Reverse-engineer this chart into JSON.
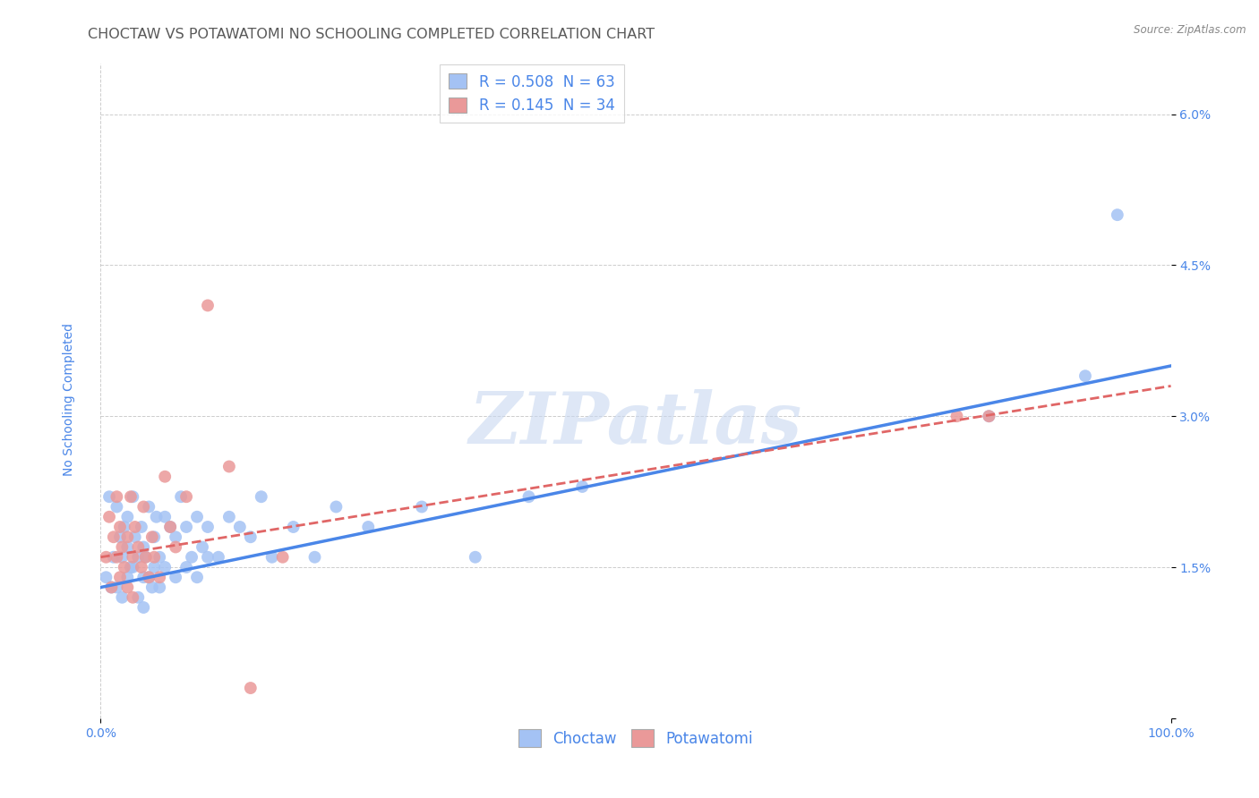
{
  "title": "CHOCTAW VS POTAWATOMI NO SCHOOLING COMPLETED CORRELATION CHART",
  "source": "Source: ZipAtlas.com",
  "ylabel": "No Schooling Completed",
  "watermark": "ZIPatlas",
  "choctaw_R": 0.508,
  "choctaw_N": 63,
  "potawatomi_R": 0.145,
  "potawatomi_N": 34,
  "xlim": [
    0,
    1.0
  ],
  "ylim": [
    0,
    0.065
  ],
  "xticks": [
    0,
    1.0
  ],
  "xticklabels": [
    "0.0%",
    "100.0%"
  ],
  "yticks": [
    0.0,
    0.015,
    0.03,
    0.045,
    0.06
  ],
  "yticklabels": [
    "",
    "1.5%",
    "3.0%",
    "4.5%",
    "6.0%"
  ],
  "choctaw_color": "#a4c2f4",
  "potawatomi_color": "#ea9999",
  "choctaw_line_color": "#4a86e8",
  "potawatomi_line_color": "#e06666",
  "background_color": "#ffffff",
  "grid_color": "#b7b7b7",
  "title_color": "#595959",
  "axis_label_color": "#4a86e8",
  "legend_text_color": "#4a86e8",
  "choctaw_x": [
    0.005,
    0.008,
    0.01,
    0.012,
    0.015,
    0.015,
    0.018,
    0.02,
    0.02,
    0.022,
    0.025,
    0.025,
    0.025,
    0.028,
    0.03,
    0.03,
    0.032,
    0.035,
    0.035,
    0.038,
    0.04,
    0.04,
    0.04,
    0.042,
    0.045,
    0.045,
    0.048,
    0.05,
    0.05,
    0.052,
    0.055,
    0.055,
    0.06,
    0.06,
    0.065,
    0.07,
    0.07,
    0.075,
    0.08,
    0.08,
    0.085,
    0.09,
    0.09,
    0.095,
    0.1,
    0.1,
    0.11,
    0.12,
    0.13,
    0.14,
    0.15,
    0.16,
    0.18,
    0.2,
    0.22,
    0.25,
    0.3,
    0.35,
    0.4,
    0.45,
    0.83,
    0.92,
    0.95
  ],
  "choctaw_y": [
    0.014,
    0.022,
    0.013,
    0.016,
    0.021,
    0.013,
    0.018,
    0.016,
    0.012,
    0.019,
    0.02,
    0.017,
    0.014,
    0.015,
    0.022,
    0.015,
    0.018,
    0.016,
    0.012,
    0.019,
    0.017,
    0.014,
    0.011,
    0.016,
    0.021,
    0.014,
    0.013,
    0.018,
    0.015,
    0.02,
    0.016,
    0.013,
    0.02,
    0.015,
    0.019,
    0.018,
    0.014,
    0.022,
    0.019,
    0.015,
    0.016,
    0.02,
    0.014,
    0.017,
    0.019,
    0.016,
    0.016,
    0.02,
    0.019,
    0.018,
    0.022,
    0.016,
    0.019,
    0.016,
    0.021,
    0.019,
    0.021,
    0.016,
    0.022,
    0.023,
    0.03,
    0.034,
    0.05
  ],
  "potawatomi_x": [
    0.005,
    0.008,
    0.01,
    0.012,
    0.015,
    0.015,
    0.018,
    0.018,
    0.02,
    0.022,
    0.025,
    0.025,
    0.028,
    0.03,
    0.03,
    0.032,
    0.035,
    0.038,
    0.04,
    0.042,
    0.045,
    0.048,
    0.05,
    0.055,
    0.06,
    0.065,
    0.07,
    0.08,
    0.1,
    0.12,
    0.14,
    0.17,
    0.8,
    0.83
  ],
  "potawatomi_y": [
    0.016,
    0.02,
    0.013,
    0.018,
    0.022,
    0.016,
    0.014,
    0.019,
    0.017,
    0.015,
    0.018,
    0.013,
    0.022,
    0.016,
    0.012,
    0.019,
    0.017,
    0.015,
    0.021,
    0.016,
    0.014,
    0.018,
    0.016,
    0.014,
    0.024,
    0.019,
    0.017,
    0.022,
    0.041,
    0.025,
    0.003,
    0.016,
    0.03,
    0.03
  ],
  "title_fontsize": 11.5,
  "axis_label_fontsize": 10,
  "tick_fontsize": 10,
  "legend_fontsize": 12
}
